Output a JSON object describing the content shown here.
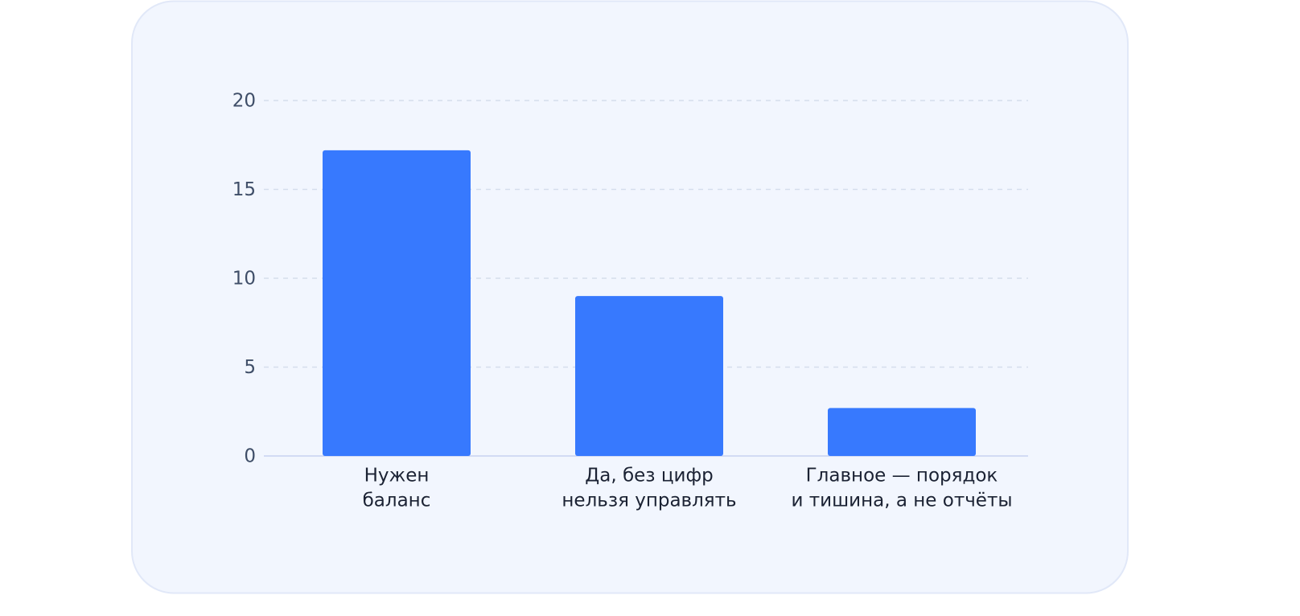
{
  "chart_data": {
    "type": "bar",
    "categories": [
      [
        "Нужен",
        "баланс"
      ],
      [
        "Да, без цифр",
        "нельзя управлять"
      ],
      [
        "Главное — порядок",
        "и тишина, а не отчёты"
      ]
    ],
    "values": [
      17.2,
      9.0,
      2.7
    ],
    "color": "#3779fe",
    "ylim": [
      0,
      20
    ],
    "yticks": [
      0,
      5,
      10,
      15,
      20
    ],
    "grid": true
  }
}
